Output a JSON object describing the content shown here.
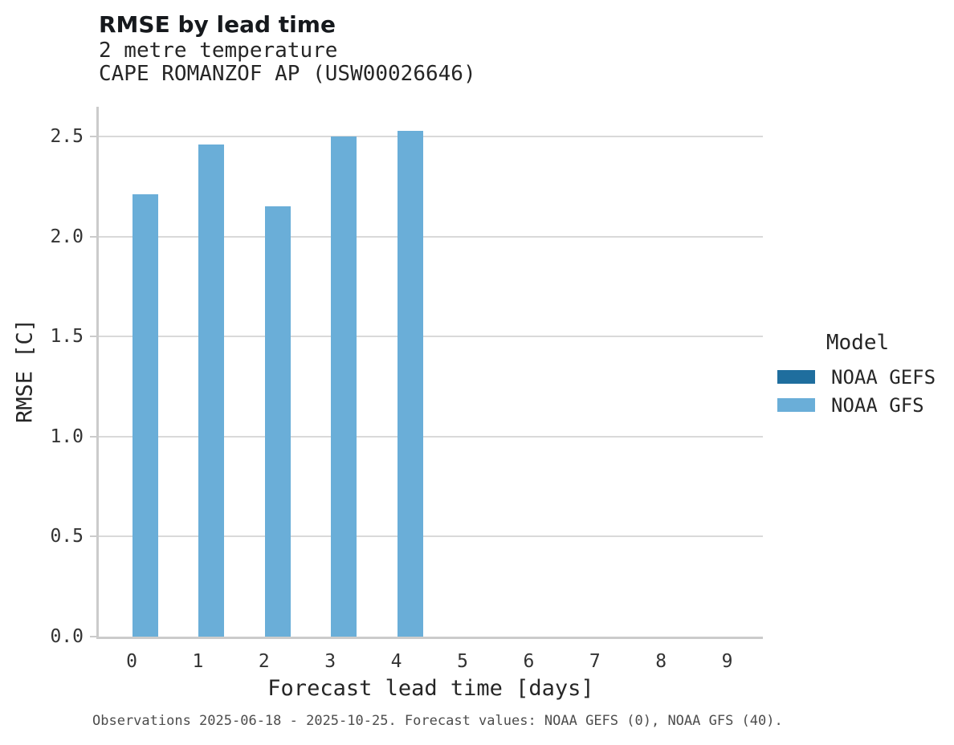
{
  "footnote": "Observations 2025-06-18 - 2025-10-25. Forecast values: NOAA GEFS (0), NOAA GFS (40).",
  "chart_data": {
    "type": "bar",
    "title": "RMSE by lead time",
    "subtitle": [
      "2 metre temperature",
      "CAPE ROMANZOF AP (USW00026646)"
    ],
    "xlabel": "Forecast lead time [days]",
    "ylabel": "RMSE [C]",
    "categories": [
      "0",
      "1",
      "2",
      "3",
      "4",
      "5",
      "6",
      "7",
      "8",
      "9"
    ],
    "y_ticks": [
      0.0,
      0.5,
      1.0,
      1.5,
      2.0,
      2.5
    ],
    "y_tick_labels": [
      "0.0",
      "0.5",
      "1.0",
      "1.5",
      "2.0",
      "2.5"
    ],
    "ylim": [
      0,
      2.64
    ],
    "grid": "horizontal",
    "series": [
      {
        "name": "NOAA GEFS",
        "color": "#1f6e9e",
        "values": [
          null,
          null,
          null,
          null,
          null,
          null,
          null,
          null,
          null,
          null
        ]
      },
      {
        "name": "NOAA GFS",
        "color": "#6aaed8",
        "values": [
          2.21,
          2.46,
          2.15,
          2.5,
          2.53,
          null,
          null,
          null,
          null,
          null
        ]
      }
    ],
    "legend": {
      "title": "Model",
      "position": "right",
      "entries": [
        {
          "name": "NOAA GEFS",
          "color": "#1f6e9e"
        },
        {
          "name": "NOAA GFS",
          "color": "#6aaed8"
        }
      ]
    }
  }
}
